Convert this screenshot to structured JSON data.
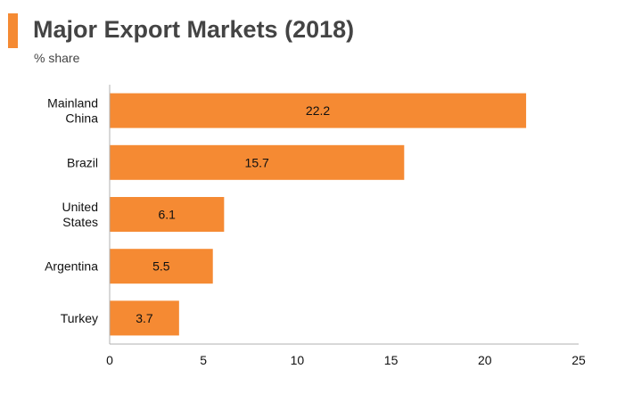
{
  "header": {
    "title": "Major Export Markets (2018)",
    "subtitle": "% share"
  },
  "colors": {
    "accent": "#f58a33",
    "bar": "#f58a33",
    "axis": "#b0b0b0",
    "text": "#111111",
    "title": "#444444"
  },
  "chart_data": {
    "type": "bar",
    "orientation": "horizontal",
    "title": "Major Export Markets (2018)",
    "subtitle": "% share",
    "categories": [
      "Mainland China",
      "Brazil",
      "United States",
      "Argentina",
      "Turkey"
    ],
    "category_lines": [
      [
        "Mainland",
        "China"
      ],
      [
        "Brazil"
      ],
      [
        "United",
        "States"
      ],
      [
        "Argentina"
      ],
      [
        "Turkey"
      ]
    ],
    "values": [
      22.2,
      15.7,
      6.1,
      5.5,
      3.7
    ],
    "data_labels": [
      "22.2",
      "15.7",
      "6.1",
      "5.5",
      "3.7"
    ],
    "xlim": [
      0,
      25
    ],
    "xticks": [
      0,
      5,
      10,
      15,
      20,
      25
    ],
    "xlabel": "",
    "ylabel": "",
    "grid": false,
    "legend": "none"
  }
}
